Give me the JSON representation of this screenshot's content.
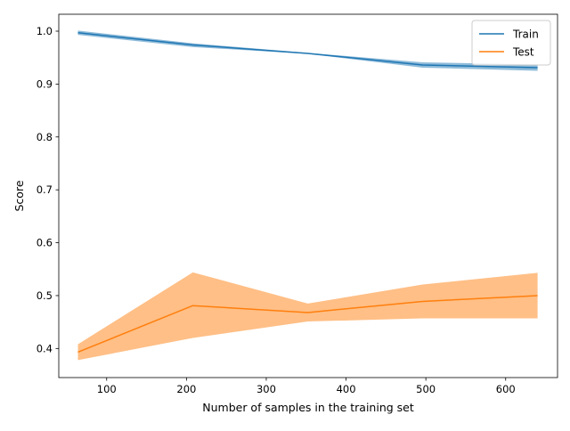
{
  "chart_data": {
    "type": "line",
    "title": "",
    "xlabel": "Number of samples in the training set",
    "ylabel": "Score",
    "xlim": [
      40,
      665
    ],
    "ylim": [
      0.345,
      1.032
    ],
    "xticks": [
      100,
      200,
      300,
      400,
      500,
      600
    ],
    "yticks": [
      0.4,
      0.5,
      0.6,
      0.7,
      0.8,
      0.9,
      1.0
    ],
    "grid": false,
    "legend_position": "top-right",
    "x": [
      64,
      208,
      352,
      496,
      640
    ],
    "series": [
      {
        "name": "Train",
        "color": "#1f77b4",
        "values": [
          0.997,
          0.974,
          0.958,
          0.936,
          0.931
        ],
        "band_low": [
          0.993,
          0.97,
          0.957,
          0.931,
          0.925
        ],
        "band_high": [
          1.001,
          0.977,
          0.959,
          0.941,
          0.937
        ]
      },
      {
        "name": "Test",
        "color": "#ff7f0e",
        "values": [
          0.393,
          0.481,
          0.468,
          0.489,
          0.5
        ],
        "band_low": [
          0.378,
          0.42,
          0.451,
          0.457,
          0.457
        ],
        "band_high": [
          0.408,
          0.544,
          0.485,
          0.521,
          0.543
        ]
      }
    ]
  }
}
